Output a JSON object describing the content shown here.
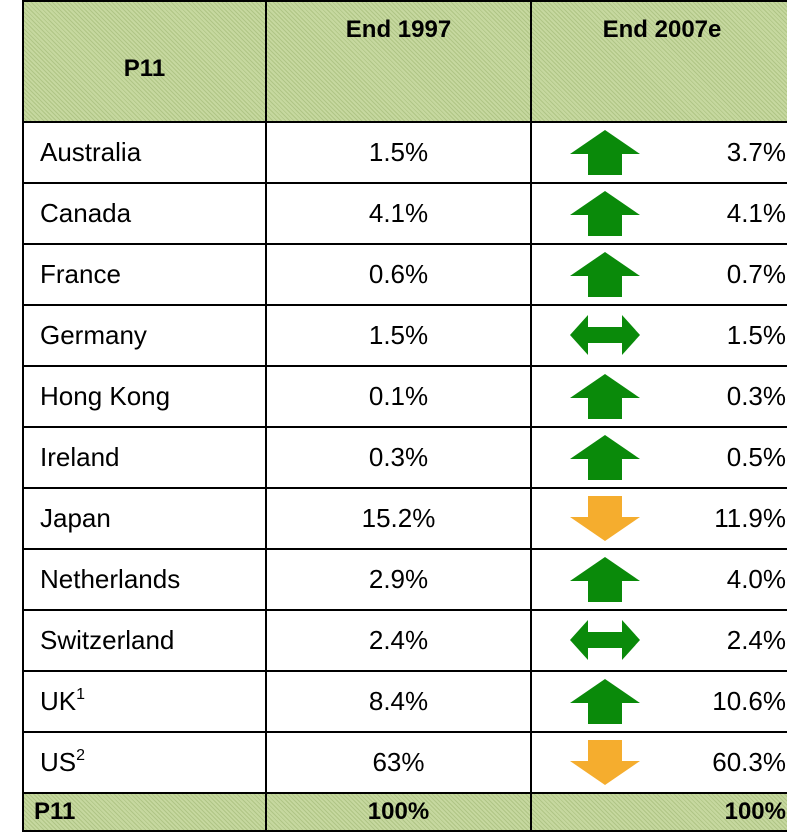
{
  "table": {
    "header": [
      "P11",
      "End 1997",
      "End 2007e"
    ],
    "rows": [
      {
        "name": "Australia",
        "end1997": "1.5%",
        "end2007": "3.7%"
      },
      {
        "name": "Canada",
        "end1997": "4.1%",
        "end2007": "4.1%"
      },
      {
        "name": "France",
        "end1997": "0.6%",
        "end2007": "0.7%"
      },
      {
        "name": "Germany",
        "end1997": "1.5%",
        "end2007": "1.5%"
      },
      {
        "name": "Hong Kong",
        "end1997": "0.1%",
        "end2007": "0.3%"
      },
      {
        "name": "Ireland",
        "end1997": "0.3%",
        "end2007": "0.5%"
      },
      {
        "name": "Japan",
        "end1997": "15.2%",
        "end2007": "11.9%"
      },
      {
        "name": "Netherlands",
        "end1997": "2.9%",
        "end2007": "4.0%"
      },
      {
        "name": "Switzerland",
        "end1997": "2.4%",
        "end2007": "2.4%"
      },
      {
        "name": "UK",
        "note": "1",
        "end1997": "8.4%",
        "end2007": "10.6%"
      },
      {
        "name": "US",
        "note": "2",
        "end1997": "63%",
        "end2007": "60.3%"
      }
    ],
    "footer": [
      "P11",
      "100%",
      "100%"
    ]
  }
}
